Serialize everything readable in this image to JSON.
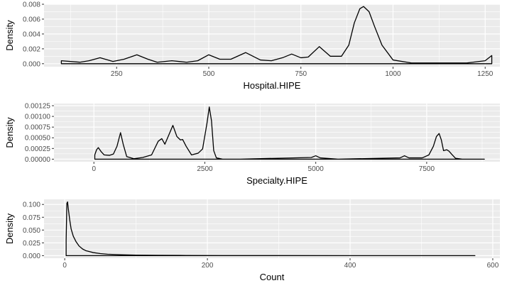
{
  "chart_data": [
    {
      "type": "area",
      "xlabel": "Hospital.HIPE",
      "ylabel": "Density",
      "xlim": [
        53,
        1290
      ],
      "ylim": [
        -0.0004,
        0.008
      ],
      "xticks": [
        250,
        500,
        750,
        1000,
        1250
      ],
      "xtick_labels": [
        "250",
        "500",
        "750",
        "1000",
        "1250"
      ],
      "yticks": [
        0.0,
        0.002,
        0.004,
        0.006,
        0.008
      ],
      "ytick_labels": [
        "0.000",
        "0.002",
        "0.004",
        "0.006",
        "0.008"
      ],
      "grid": true,
      "series": [
        {
          "x": [
            100,
            150,
            175,
            205,
            240,
            270,
            305,
            335,
            360,
            400,
            440,
            470,
            500,
            530,
            560,
            600,
            640,
            670,
            700,
            725,
            750,
            770,
            800,
            830,
            860,
            880,
            895,
            910,
            920,
            935,
            950,
            970,
            1000,
            1050,
            1200,
            1250,
            1268
          ],
          "y": [
            0.0004,
            0.0002,
            0.0004,
            0.0008,
            0.0003,
            0.0006,
            0.0012,
            0.0006,
            0.0002,
            0.0004,
            0.0002,
            0.0004,
            0.0012,
            0.0006,
            0.0006,
            0.0015,
            0.0005,
            0.0004,
            0.0008,
            0.0013,
            0.0008,
            0.0009,
            0.0023,
            0.001,
            0.001,
            0.0025,
            0.0055,
            0.0074,
            0.0077,
            0.007,
            0.005,
            0.0025,
            0.0005,
            0.0001,
            0.0001,
            0.0004,
            0.0011
          ]
        }
      ]
    },
    {
      "type": "area",
      "xlabel": "Specialty.HIPE",
      "ylabel": "Density",
      "xlim": [
        -900,
        9150
      ],
      "ylim": [
        -6e-05,
        0.0013
      ],
      "xticks": [
        0,
        2500,
        5000,
        7500
      ],
      "xtick_labels": [
        "0",
        "2500",
        "5000",
        "7500"
      ],
      "yticks": [
        0.0,
        0.00025,
        0.0005,
        0.00075,
        0.001,
        0.00125
      ],
      "ytick_labels": [
        "0.00000",
        "0.00025",
        "0.00050",
        "0.00075",
        "0.00100",
        "0.00125"
      ],
      "grid": true,
      "series": [
        {
          "x": [
            20,
            60,
            100,
            160,
            230,
            350,
            440,
            520,
            600,
            660,
            740,
            900,
            1100,
            1300,
            1450,
            1530,
            1600,
            1670,
            1780,
            1870,
            1950,
            2000,
            2080,
            2200,
            2350,
            2450,
            2550,
            2600,
            2650,
            2700,
            2760,
            2900,
            3300,
            4900,
            5000,
            5100,
            5500,
            6900,
            7000,
            7100,
            7400,
            7550,
            7650,
            7720,
            7780,
            7830,
            7880,
            7950,
            8000,
            8060,
            8150,
            8300,
            8800
          ],
          "y": [
            0.0001,
            0.00022,
            0.00027,
            0.00018,
            0.0001,
            9e-05,
            0.00012,
            0.0003,
            0.00062,
            0.00035,
            6e-05,
            1e-05,
            4e-05,
            0.0001,
            0.00042,
            0.00048,
            0.00035,
            0.00052,
            0.00079,
            0.00053,
            0.00045,
            0.00046,
            0.0003,
            0.0001,
            0.00014,
            0.00024,
            0.00085,
            0.00122,
            0.0009,
            0.0002,
            3e-05,
            0.0,
            0.0,
            4e-05,
            8e-05,
            3e-05,
            0.0,
            3e-05,
            8e-05,
            3e-05,
            3e-05,
            0.0001,
            0.0003,
            0.00053,
            0.0006,
            0.00045,
            0.0002,
            0.00022,
            0.00019,
            0.00012,
            2e-05,
            0.0,
            0.0
          ]
        }
      ]
    },
    {
      "type": "area",
      "xlabel": "Count",
      "ylabel": "Density",
      "xlim": [
        -29,
        610
      ],
      "ylim": [
        -0.005,
        0.11
      ],
      "xticks": [
        0,
        200,
        400,
        600
      ],
      "xtick_labels": [
        "0",
        "200",
        "400",
        "600"
      ],
      "yticks": [
        0.0,
        0.025,
        0.05,
        0.075,
        0.1
      ],
      "ytick_labels": [
        "0.000",
        "0.025",
        "0.050",
        "0.075",
        "0.100"
      ],
      "grid": true,
      "series": [
        {
          "x": [
            2,
            3,
            4,
            5,
            7,
            9,
            12,
            16,
            20,
            25,
            30,
            40,
            50,
            60,
            80,
            100,
            130,
            170,
            220,
            300,
            400,
            500,
            575
          ],
          "y": [
            0.03,
            0.102,
            0.105,
            0.092,
            0.07,
            0.052,
            0.038,
            0.027,
            0.019,
            0.013,
            0.0095,
            0.006,
            0.004,
            0.0028,
            0.0017,
            0.0011,
            0.0007,
            0.0004,
            0.0002,
            0.0001,
            5e-05,
            2e-05,
            0.0
          ]
        }
      ]
    }
  ]
}
